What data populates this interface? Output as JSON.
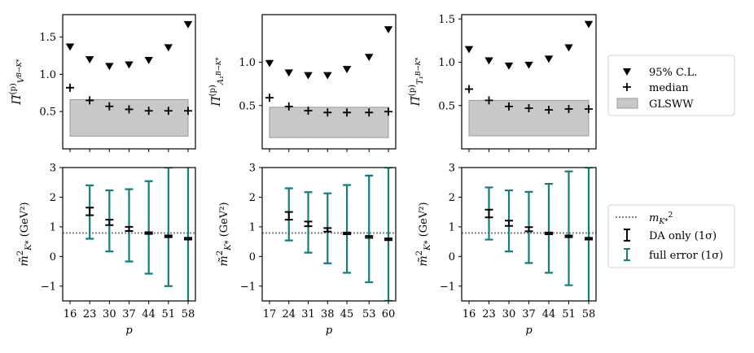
{
  "chart_data": [
    {
      "type": "scatter",
      "panel": "top-1",
      "ylabel": {
        "main": "Π̃",
        "sup": "(p)",
        "sub": "V",
        "subsup": "B→K*"
      },
      "x": [
        16,
        23,
        30,
        37,
        44,
        51,
        58
      ],
      "xticks": [
        "16",
        "23",
        "30",
        "37",
        "44",
        "51",
        "58"
      ],
      "ylim": [
        0.0,
        1.8
      ],
      "yticks": [
        "0.5",
        "1.0",
        "1.5"
      ],
      "yticks_values": [
        0.5,
        1.0,
        1.5
      ],
      "series": [
        {
          "name": "95% C.L.",
          "marker": "triangle-down",
          "values": [
            1.37,
            1.2,
            1.11,
            1.13,
            1.19,
            1.36,
            1.67
          ]
        },
        {
          "name": "median",
          "marker": "plus",
          "values": [
            0.82,
            0.65,
            0.57,
            0.53,
            0.51,
            0.51,
            0.51
          ]
        }
      ],
      "band": {
        "name": "GLSWW",
        "y_low": 0.17,
        "y_high": 0.66,
        "x_from": 16,
        "x_to": 58
      }
    },
    {
      "type": "scatter",
      "panel": "top-2",
      "ylabel": {
        "main": "Π̃",
        "sup": "(p)",
        "sub": "A₁",
        "subsup": "B→K*"
      },
      "x": [
        17,
        24,
        31,
        38,
        45,
        53,
        60
      ],
      "xticks": [
        "17",
        "24",
        "31",
        "38",
        "45",
        "53",
        "60"
      ],
      "ylim": [
        0.0,
        1.55
      ],
      "yticks": [
        "0.5",
        "1.0"
      ],
      "yticks_values": [
        0.5,
        1.0
      ],
      "series": [
        {
          "name": "95% C.L.",
          "marker": "triangle-down",
          "values": [
            0.99,
            0.88,
            0.85,
            0.85,
            0.92,
            1.06,
            1.38
          ]
        },
        {
          "name": "median",
          "marker": "plus",
          "values": [
            0.59,
            0.49,
            0.44,
            0.42,
            0.42,
            0.42,
            0.43
          ]
        }
      ],
      "band": {
        "name": "GLSWW",
        "y_low": 0.13,
        "y_high": 0.48,
        "x_from": 17,
        "x_to": 60
      }
    },
    {
      "type": "scatter",
      "panel": "top-3",
      "ylabel": {
        "main": "Π̃",
        "sup": "(p)",
        "sub": "T₁",
        "subsup": "B→K*"
      },
      "x": [
        16,
        23,
        30,
        37,
        44,
        51,
        58
      ],
      "xticks": [
        "16",
        "23",
        "30",
        "37",
        "44",
        "51",
        "58"
      ],
      "ylim": [
        0.0,
        1.55
      ],
      "yticks": [
        "0.5",
        "1.0",
        "1.5"
      ],
      "yticks_values": [
        0.5,
        1.0,
        1.5
      ],
      "series": [
        {
          "name": "95% C.L.",
          "marker": "triangle-down",
          "values": [
            1.15,
            1.02,
            0.96,
            0.97,
            1.04,
            1.17,
            1.44
          ]
        },
        {
          "name": "median",
          "marker": "plus",
          "values": [
            0.69,
            0.56,
            0.49,
            0.47,
            0.45,
            0.46,
            0.46
          ]
        }
      ],
      "band": {
        "name": "GLSWW",
        "y_low": 0.15,
        "y_high": 0.56,
        "x_from": 16,
        "x_to": 58
      }
    },
    {
      "type": "errorbar",
      "panel": "bottom-1",
      "ylabel": {
        "main": "m̃",
        "sup": "2",
        "sub": "K*",
        "unit": "(GeV²)"
      },
      "xlabel": "p",
      "x": [
        16,
        23,
        30,
        37,
        44,
        51,
        58
      ],
      "xticks": [
        "16",
        "23",
        "30",
        "37",
        "44",
        "51",
        "58"
      ],
      "ylim": [
        -1.5,
        3.0
      ],
      "yticks": [
        "−1",
        "0",
        "1",
        "2",
        "3"
      ],
      "yticks_values": [
        -1,
        0,
        1,
        2,
        3
      ],
      "reference_line": {
        "name": "m_K*²",
        "value": 0.79
      },
      "series": [
        {
          "name": "DA only (1σ)",
          "values": [
            null,
            1.52,
            1.15,
            0.93,
            0.79,
            0.68,
            0.6
          ],
          "err": [
            null,
            0.13,
            0.09,
            0.07,
            0.03,
            0.03,
            0.03
          ]
        },
        {
          "name": "full error (1σ)",
          "values": [
            null,
            1.5,
            1.2,
            1.05,
            0.98,
            1.0,
            0.75
          ],
          "err": [
            null,
            0.9,
            1.03,
            1.22,
            1.56,
            2.0,
            2.3
          ]
        }
      ]
    },
    {
      "type": "errorbar",
      "panel": "bottom-2",
      "ylabel": {
        "main": "m̃",
        "sup": "2",
        "sub": "K*",
        "unit": "(GeV²)"
      },
      "xlabel": "p",
      "x": [
        17,
        24,
        31,
        38,
        45,
        53,
        60
      ],
      "xticks": [
        "17",
        "24",
        "31",
        "38",
        "45",
        "53",
        "60"
      ],
      "ylim": [
        -1.5,
        3.0
      ],
      "yticks": [
        "−1",
        "0",
        "1",
        "2",
        "3"
      ],
      "yticks_values": [
        -1,
        0,
        1,
        2,
        3
      ],
      "reference_line": {
        "name": "m_K*²",
        "value": 0.79
      },
      "series": [
        {
          "name": "DA only (1σ)",
          "values": [
            null,
            1.37,
            1.1,
            0.9,
            0.78,
            0.66,
            0.58
          ],
          "err": [
            null,
            0.13,
            0.08,
            0.06,
            0.03,
            0.03,
            0.03
          ]
        },
        {
          "name": "full error (1σ)",
          "values": [
            null,
            1.42,
            1.15,
            0.95,
            0.93,
            0.93,
            0.75
          ],
          "err": [
            null,
            0.88,
            1.02,
            1.18,
            1.48,
            1.8,
            2.25
          ]
        }
      ]
    },
    {
      "type": "errorbar",
      "panel": "bottom-3",
      "ylabel": {
        "main": "m̃",
        "sup": "2",
        "sub": "K*",
        "unit": "(GeV²)"
      },
      "xlabel": "p",
      "x": [
        16,
        23,
        30,
        37,
        44,
        51,
        58
      ],
      "xticks": [
        "16",
        "23",
        "30",
        "37",
        "44",
        "51",
        "58"
      ],
      "ylim": [
        -1.5,
        3.0
      ],
      "yticks": [
        "−1",
        "0",
        "1",
        "2",
        "3"
      ],
      "yticks_values": [
        -1,
        0,
        1,
        2,
        3
      ],
      "reference_line": {
        "name": "m_K*²",
        "value": 0.79
      },
      "series": [
        {
          "name": "DA only (1σ)",
          "values": [
            null,
            1.45,
            1.12,
            0.92,
            0.78,
            0.68,
            0.6
          ],
          "err": [
            null,
            0.13,
            0.09,
            0.07,
            0.03,
            0.03,
            0.03
          ]
        },
        {
          "name": "full error (1σ)",
          "values": [
            null,
            1.45,
            1.2,
            0.98,
            0.95,
            0.95,
            0.7
          ],
          "err": [
            null,
            0.88,
            1.03,
            1.2,
            1.5,
            1.92,
            2.3
          ]
        }
      ]
    }
  ],
  "legend_top": {
    "placement": "right",
    "items": [
      {
        "label": "95% C.L.",
        "marker": "triangle-down"
      },
      {
        "label": "median",
        "marker": "plus"
      },
      {
        "label": "GLSWW",
        "marker": "band"
      }
    ]
  },
  "legend_bottom": {
    "placement": "right",
    "items": [
      {
        "label_main": "m",
        "label_sub": "K*",
        "label_sup": "2",
        "marker": "dotted-line"
      },
      {
        "label": "DA only (1σ)",
        "marker": "errorbar-black"
      },
      {
        "label": "full error (1σ)",
        "marker": "errorbar-teal"
      }
    ]
  },
  "colors": {
    "teal": "#127f7f",
    "band_fill": "#c8c8c8",
    "band_edge": "#9a9a9a",
    "ref_line": "#808080",
    "black": "#000000"
  }
}
